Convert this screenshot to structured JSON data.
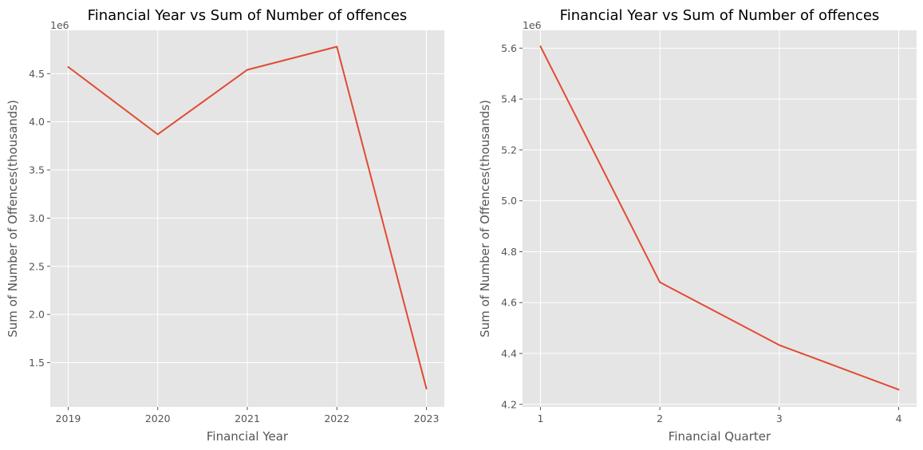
{
  "chart_data": [
    {
      "type": "line",
      "title": "Financial Year vs Sum of Number of offences",
      "xlabel": "Financial Year",
      "ylabel": "Sum of Number of Offences(thousands)",
      "y_offset_text": "1e6",
      "x": [
        2019,
        2020,
        2021,
        2022,
        2023
      ],
      "x_tick_labels": [
        "2019",
        "2020",
        "2021",
        "2022",
        "2023"
      ],
      "xlim": [
        2018.8,
        2023.2
      ],
      "y_ticks": [
        1500000,
        2000000,
        2500000,
        3000000,
        3500000,
        4000000,
        4500000
      ],
      "y_tick_labels": [
        "1.5",
        "2.0",
        "2.5",
        "3.0",
        "3.5",
        "4.0",
        "4.5"
      ],
      "ylim": [
        1040000,
        4950000
      ],
      "grid": true,
      "series": [
        {
          "values": [
            4570000,
            3870000,
            4540000,
            4780000,
            1230000
          ],
          "color": "#e24a33"
        }
      ]
    },
    {
      "type": "line",
      "title": "Financial Year vs Sum of Number of offences",
      "xlabel": "Financial Quarter",
      "ylabel": "Sum of Number of Offences(thousands)",
      "y_offset_text": "1e6",
      "x": [
        1,
        2,
        3,
        4
      ],
      "x_tick_labels": [
        "1",
        "2",
        "3",
        "4"
      ],
      "xlim": [
        0.85,
        4.15
      ],
      "y_ticks": [
        4200000,
        4400000,
        4600000,
        4800000,
        5000000,
        5200000,
        5400000,
        5600000
      ],
      "y_tick_labels": [
        "4.2",
        "4.4",
        "4.6",
        "4.8",
        "5.0",
        "5.2",
        "5.4",
        "5.6"
      ],
      "ylim": [
        4190000,
        5670000
      ],
      "grid": true,
      "series": [
        {
          "values": [
            5607000,
            4680000,
            4433000,
            4258000
          ],
          "color": "#e24a33"
        }
      ]
    }
  ]
}
